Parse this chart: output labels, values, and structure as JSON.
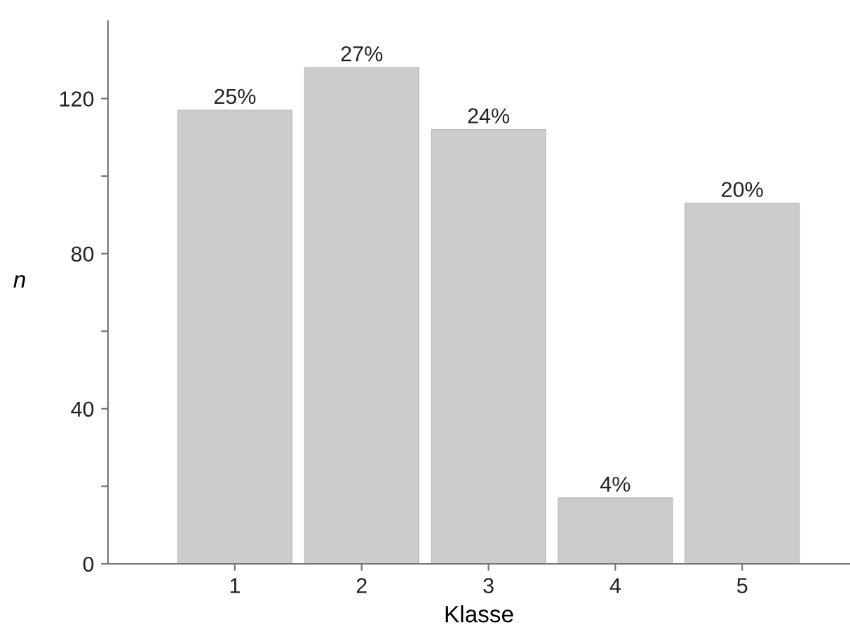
{
  "chart_data": {
    "type": "bar",
    "xlabel": "Klasse",
    "ylabel": "n",
    "categories": [
      "1",
      "2",
      "3",
      "4",
      "5"
    ],
    "values": [
      117,
      128,
      112,
      17,
      93
    ],
    "annotations": [
      {
        "text": "25%",
        "x": "1",
        "y": 117
      },
      {
        "text": "27%",
        "x": "2",
        "y": 128
      },
      {
        "text": "24%",
        "x": "3",
        "y": 112
      },
      {
        "text": "4%",
        "x": "4",
        "y": 17
      },
      {
        "text": "20%",
        "x": "5",
        "y": 93
      }
    ],
    "color": "#cccccc",
    "ylim": [
      0,
      140
    ],
    "yticks": [
      0,
      {
        "value": 20,
        "label": null
      },
      40,
      {
        "value": 60,
        "label": null
      },
      80,
      {
        "value": 100,
        "label": null
      },
      120
    ],
    "grid": false
  }
}
